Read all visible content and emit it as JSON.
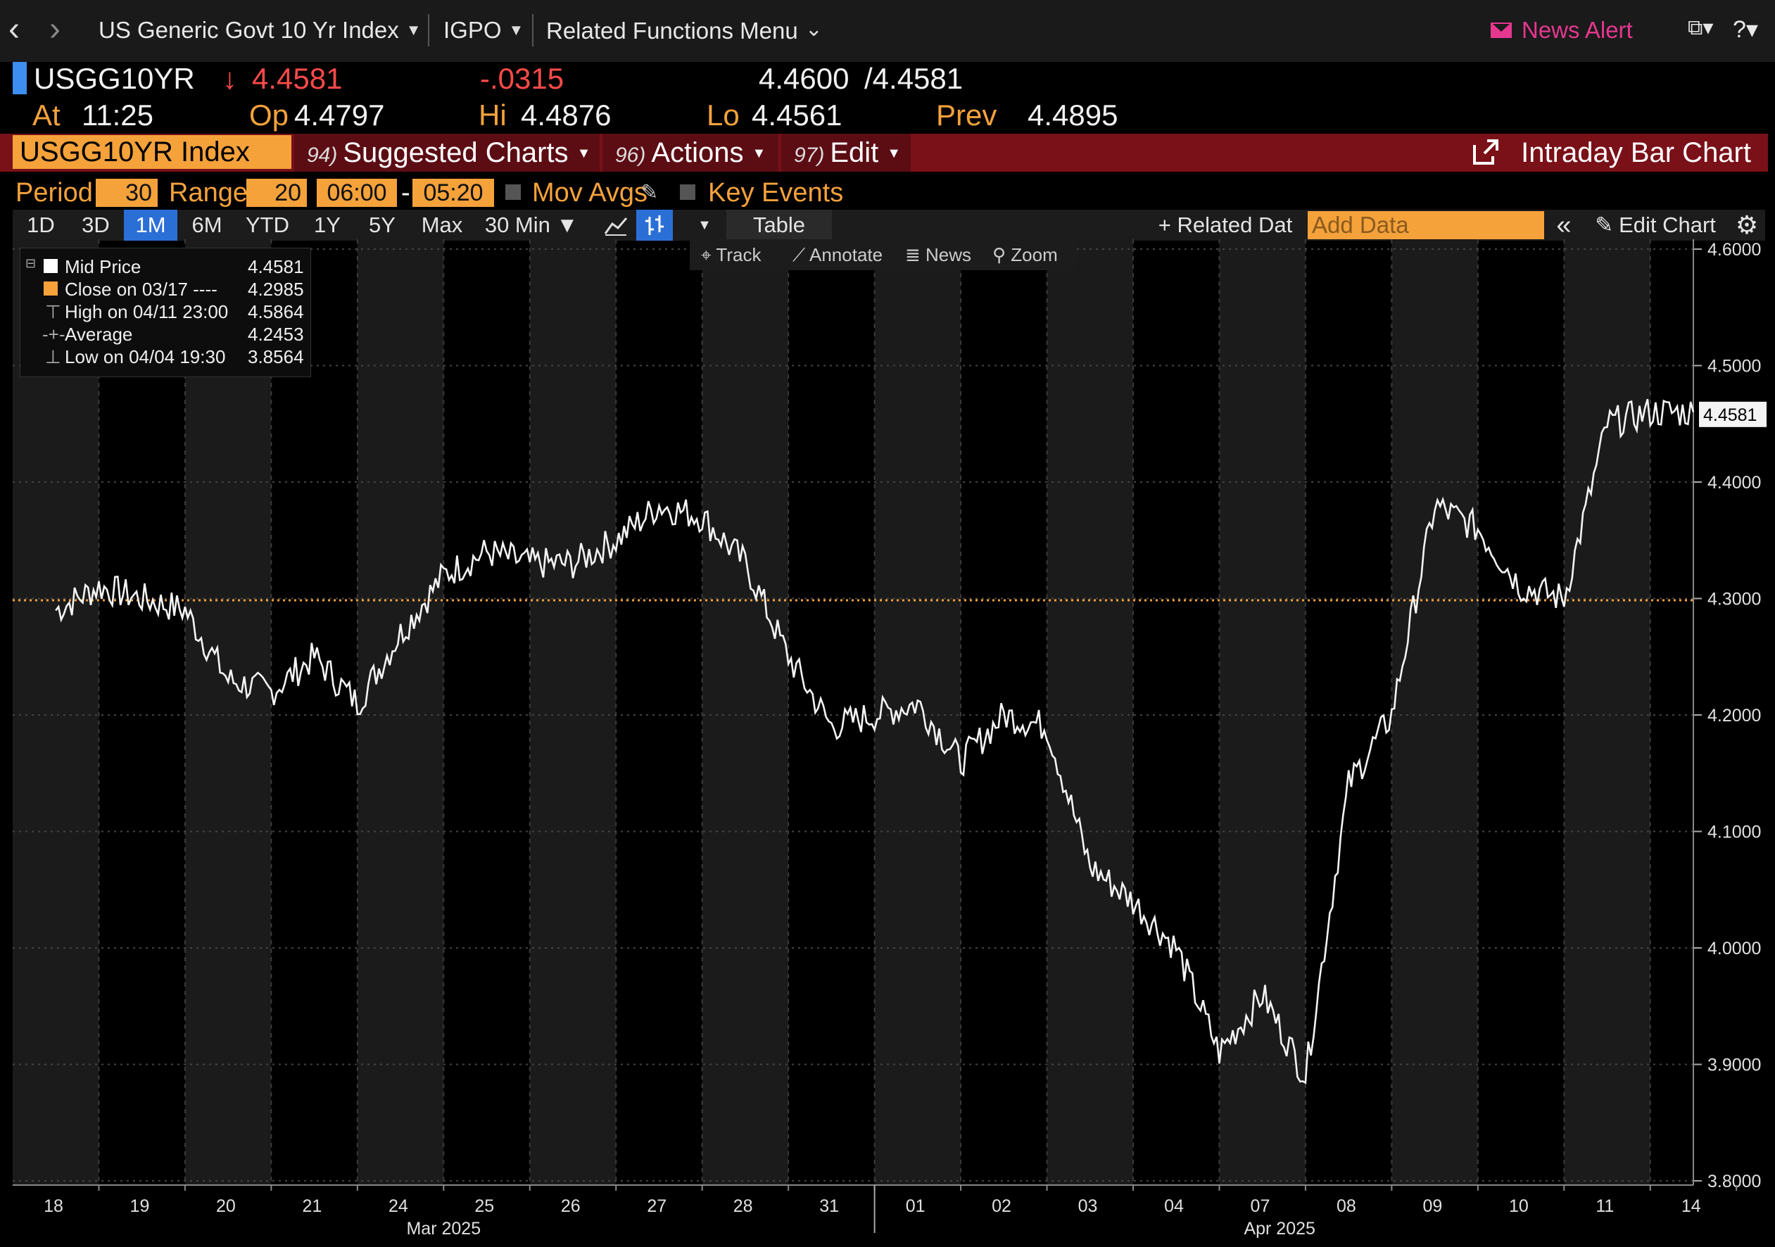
{
  "nav": {
    "back_icon": "chevron-left-icon",
    "forward_icon": "chevron-right-icon",
    "security_name": "US Generic Govt 10 Yr Index",
    "function_code": "IGPO",
    "related_menu": "Related Functions Menu",
    "news_alert": "News Alert"
  },
  "quote": {
    "ticker": "USGG10YR",
    "last": "4.4581",
    "last_arrow": "↓",
    "change": "-.0315",
    "bid": "4.4600",
    "ask": "/4.4581",
    "at_label": "At",
    "time": "11:25",
    "open_label": "Op",
    "open": "4.4797",
    "high_label": "Hi",
    "high": "4.4876",
    "low_label": "Lo",
    "low": "4.4561",
    "prev_label": "Prev",
    "prev": "4.4895"
  },
  "function_bar": {
    "security": "USGG10YR Index",
    "suggested_num": "94)",
    "suggested": "Suggested Charts",
    "actions_num": "96)",
    "actions": "Actions",
    "edit_num": "97)",
    "edit": "Edit",
    "chart_title": "Intraday Bar Chart"
  },
  "period_row": {
    "period_label": "Period",
    "period_value": "30",
    "range_label": "Range",
    "range_value": "20",
    "start_time": "06:00",
    "dash": "-",
    "end_time": "05:20",
    "mov_avgs": "Mov Avgs",
    "key_events": "Key Events"
  },
  "toolbar": {
    "ranges": [
      "1D",
      "3D",
      "1M",
      "6M",
      "YTD",
      "1Y",
      "5Y",
      "Max"
    ],
    "selected_range": "1M",
    "interval": "30 Min ▼",
    "table": "Table",
    "related_data": "+ Related Dat",
    "add_data_placeholder": "Add Data",
    "collapse": "«",
    "edit_chart": "Edit Chart",
    "sub_tools": [
      "Track",
      "Annotate",
      "News",
      "Zoom"
    ]
  },
  "legend": [
    {
      "label": "Mid Price",
      "value": "4.4581"
    },
    {
      "label": "Close on 03/17 ----",
      "value": "4.2985"
    },
    {
      "label": "High on 04/11 23:00",
      "value": "4.5864"
    },
    {
      "label": "Average",
      "value": "4.2453"
    },
    {
      "label": "Low on 04/04 19:30",
      "value": "3.8564"
    }
  ],
  "colors": {
    "background": "#000000",
    "amber": "#f5a23b",
    "function_bar": "#7a1018",
    "selected_blue": "#2a6fd6",
    "down_red": "#ff4a4a",
    "news_pink": "#e6378f",
    "reference_line": "#f5a23b"
  },
  "chart_data": {
    "type": "line",
    "series_label": "Mid Price",
    "reference_value": 4.2985,
    "last_value_label": "4.4581",
    "ylim": [
      3.8,
      4.6
    ],
    "y_ticks": [
      "4.6000",
      "4.5000",
      "4.4000",
      "4.3000",
      "4.2000",
      "4.1000",
      "4.0000",
      "3.9000",
      "3.8000"
    ],
    "x_ticks": [
      "18",
      "19",
      "20",
      "21",
      "24",
      "25",
      "26",
      "27",
      "28",
      "31",
      "01",
      "02",
      "03",
      "04",
      "07",
      "08",
      "09",
      "10",
      "11",
      "14"
    ],
    "month_labels": [
      "Mar 2025",
      "Apr 2025"
    ],
    "x_index": [
      0,
      0.5,
      1,
      1.5,
      2,
      2.5,
      3,
      3.5,
      4,
      4.5,
      5,
      5.5,
      6,
      6.5,
      7,
      7.5,
      8,
      8.5,
      9,
      9.5,
      10,
      10.5,
      11,
      11.5,
      12,
      12.5,
      13,
      13.5,
      14,
      14.5,
      15,
      15.5,
      16,
      16.5,
      17,
      17.5,
      18,
      18.5,
      19
    ],
    "values": [
      4.29,
      4.31,
      4.3,
      4.29,
      4.23,
      4.22,
      4.25,
      4.21,
      4.27,
      4.32,
      4.34,
      4.33,
      4.33,
      4.35,
      4.38,
      4.37,
      4.33,
      4.25,
      4.19,
      4.2,
      4.21,
      4.16,
      4.2,
      4.19,
      4.07,
      4.04,
      4.0,
      3.91,
      3.96,
      3.89,
      4.14,
      4.2,
      4.38,
      4.36,
      4.31,
      4.3,
      4.45,
      4.46,
      4.46
    ]
  }
}
